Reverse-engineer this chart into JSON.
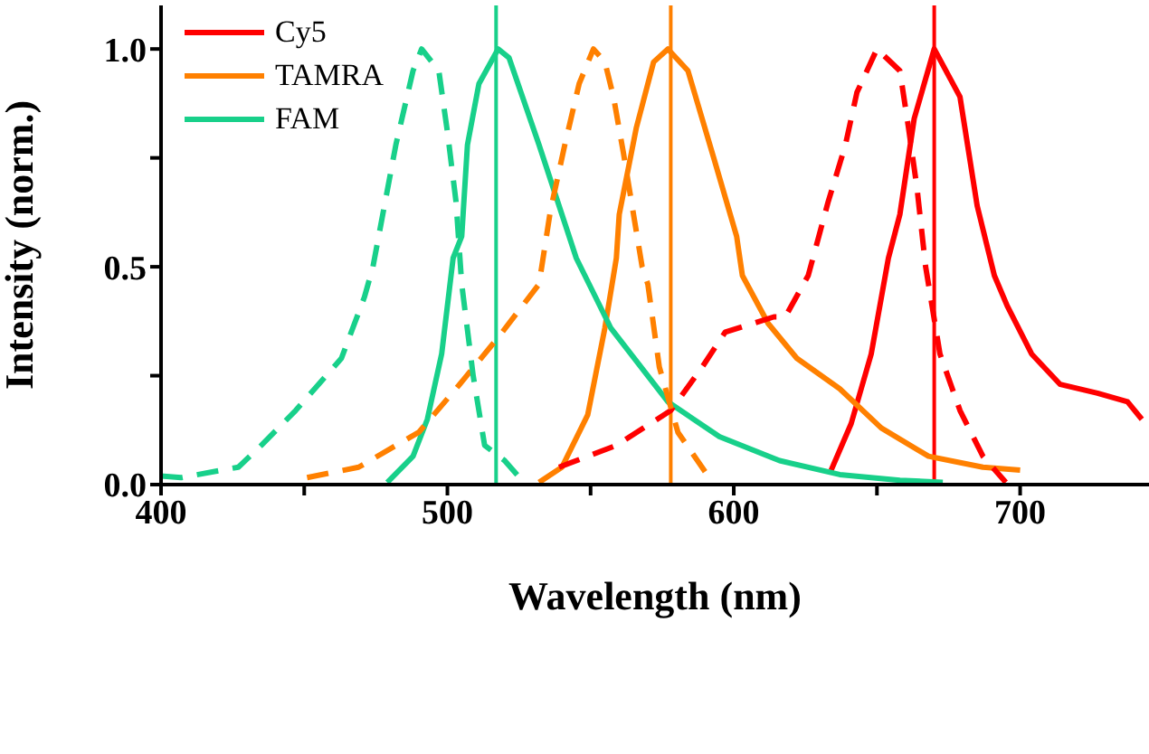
{
  "chart_data": {
    "type": "line",
    "xlabel": "Wavelength (nm)",
    "ylabel": "Intensity (norm.)",
    "xlim": [
      400,
      745
    ],
    "xticks": [
      400,
      {
        "value": 450,
        "label": null
      },
      500,
      {
        "value": 550,
        "label": null
      },
      600,
      {
        "value": 650,
        "label": null
      },
      700
    ],
    "ylim": [
      0,
      1.1
    ],
    "yticks": [
      {
        "value": 0,
        "label": "0.0"
      },
      {
        "value": 0.25,
        "label": null
      },
      {
        "value": 0.5,
        "label": "0.5"
      },
      {
        "value": 0.75,
        "label": null
      },
      {
        "value": 1,
        "label": "1.0"
      }
    ],
    "grid": false,
    "legend": "top left",
    "marker": "none",
    "series": [
      {
        "name": "Cy5",
        "color": "#ff0000",
        "line_style": "solid",
        "x": [
          634,
          641,
          648,
          654,
          658,
          663,
          670,
          679,
          685,
          691,
          695.5,
          704,
          714,
          727,
          737.5,
          742.5
        ],
        "values": [
          0.033,
          0.14,
          0.3,
          0.52,
          0.62,
          0.84,
          1,
          0.89,
          0.64,
          0.48,
          0.41,
          0.3,
          0.23,
          0.21,
          0.19,
          0.15
        ]
      },
      {
        "name": "TAMRA",
        "color": "#ff8000",
        "line_style": "solid",
        "x": [
          532,
          540,
          549,
          555,
          559,
          560,
          566,
          572,
          577,
          584,
          593,
          601,
          603,
          612,
          622,
          637,
          651.5,
          668,
          687,
          700
        ],
        "values": [
          0.005,
          0.04,
          0.16,
          0.36,
          0.52,
          0.62,
          0.82,
          0.97,
          1,
          0.95,
          0.75,
          0.57,
          0.48,
          0.37,
          0.29,
          0.22,
          0.13,
          0.065,
          0.04,
          0.033
        ]
      },
      {
        "name": "FAM",
        "color": "#18d08a",
        "line_style": "solid",
        "x": [
          479,
          488,
          493,
          498,
          502,
          505,
          507,
          511,
          517.7,
          521.5,
          532,
          545,
          557,
          577,
          595,
          616,
          637,
          658,
          673
        ],
        "values": [
          0.005,
          0.065,
          0.15,
          0.3,
          0.52,
          0.57,
          0.78,
          0.92,
          1,
          0.98,
          0.78,
          0.52,
          0.36,
          0.19,
          0.11,
          0.055,
          0.023,
          0.01,
          0.005
        ]
      },
      {
        "color": "#ff0000",
        "line_style": "dashed",
        "x": [
          539,
          559,
          578,
          589,
          597,
          614,
          618,
          626,
          633,
          639,
          643,
          650,
          658,
          661,
          664,
          667,
          672,
          679,
          687,
          695
        ],
        "values": [
          0.04,
          0.09,
          0.17,
          0.27,
          0.35,
          0.385,
          0.385,
          0.48,
          0.65,
          0.78,
          0.9,
          1,
          0.95,
          0.82,
          0.68,
          0.5,
          0.3,
          0.17,
          0.065,
          0.005
        ]
      },
      {
        "color": "#ff8000",
        "line_style": "dashed",
        "x": [
          451,
          469,
          490,
          503,
          518,
          532,
          536,
          541,
          546,
          551,
          555,
          558,
          561.5,
          564.5,
          568,
          570,
          574,
          580.5,
          591
        ],
        "values": [
          0.016,
          0.04,
          0.12,
          0.22,
          0.34,
          0.46,
          0.63,
          0.78,
          0.92,
          1,
          0.97,
          0.89,
          0.76,
          0.64,
          0.5,
          0.46,
          0.27,
          0.12,
          0.02
        ]
      },
      {
        "color": "#18d08a",
        "line_style": "dashed",
        "x": [
          400,
          407,
          427,
          435,
          447,
          463,
          471,
          474,
          482,
          488,
          491,
          497,
          500,
          503,
          505,
          509,
          513,
          520,
          526
        ],
        "values": [
          0.02,
          0.016,
          0.04,
          0.09,
          0.17,
          0.29,
          0.43,
          0.5,
          0.78,
          0.95,
          1,
          0.95,
          0.81,
          0.65,
          0.46,
          0.25,
          0.09,
          0.055,
          0.01
        ]
      }
    ],
    "ref_lines": [
      {
        "axis": "x",
        "value": 517,
        "color": "#18d08a"
      },
      {
        "axis": "x",
        "value": 578,
        "color": "#ff8000"
      },
      {
        "axis": "x",
        "value": 670,
        "color": "#ff0000"
      }
    ]
  }
}
